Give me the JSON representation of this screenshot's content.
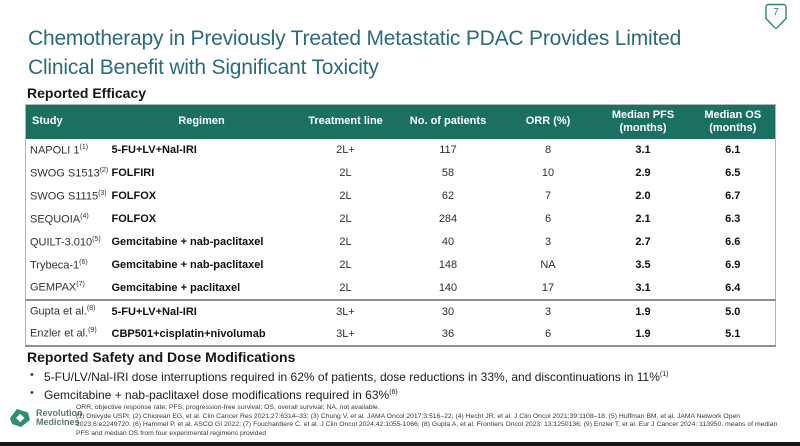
{
  "page": {
    "number": "7"
  },
  "colors": {
    "accent_mint": "#7deccf",
    "accent_green": "#2bc873",
    "table_header_bg": "#1b7061",
    "title_teal": "#2a6b7c",
    "badge_outline": "#2e8273",
    "logo_green": "#2e8f72"
  },
  "title_line1": "Chemotherapy in Previously Treated Metastatic PDAC Provides Limited",
  "title_line2": "Clinical Benefit with Significant Toxicity",
  "sections": {
    "efficacy_heading": "Reported Efficacy",
    "safety_heading": "Reported Safety and Dose Modifications"
  },
  "table": {
    "headers": [
      "Study",
      "Regimen",
      "Treatment line",
      "No. of patients",
      "ORR (%)",
      "Median PFS (months)",
      "Median OS (months)"
    ],
    "rows": [
      {
        "study": "NAPOLI 1",
        "ref": "(1)",
        "regimen": "5-FU+LV+Nal-IRI",
        "line": "2L+",
        "patients": "117",
        "orr": "8",
        "pfs": "3.1",
        "os": "6.1",
        "group": "2L"
      },
      {
        "study": "SWOG S1513",
        "ref": "(2)",
        "regimen": "FOLFIRI",
        "line": "2L",
        "patients": "58",
        "orr": "10",
        "pfs": "2.9",
        "os": "6.5",
        "group": "2L"
      },
      {
        "study": "SWOG S1115",
        "ref": "(3)",
        "regimen": "FOLFOX",
        "line": "2L",
        "patients": "62",
        "orr": "7",
        "pfs": "2.0",
        "os": "6.7",
        "group": "2L"
      },
      {
        "study": "SEQUOIA",
        "ref": "(4)",
        "regimen": "FOLFOX",
        "line": "2L",
        "patients": "284",
        "orr": "6",
        "pfs": "2.1",
        "os": "6.3",
        "group": "2L"
      },
      {
        "study": "QUILT-3.010",
        "ref": "(5)",
        "regimen": "Gemcitabine + nab-paclitaxel",
        "line": "2L",
        "patients": "40",
        "orr": "3",
        "pfs": "2.7",
        "os": "6.6",
        "group": "2L"
      },
      {
        "study": "Trybeca-1",
        "ref": "(6)",
        "regimen": "Gemcitabine + nab-paclitaxel",
        "line": "2L",
        "patients": "148",
        "orr": "NA",
        "pfs": "3.5",
        "os": "6.9",
        "group": "2L"
      },
      {
        "study": "GEMPAX",
        "ref": "(7)",
        "regimen": "Gemcitabine + paclitaxel",
        "line": "2L",
        "patients": "140",
        "orr": "17",
        "pfs": "3.1",
        "os": "6.4",
        "group": "2L"
      },
      {
        "study": "Gupta et al.",
        "ref": "(8)",
        "regimen": "5-FU+LV+Nal-IRI",
        "line": "3L+",
        "patients": "30",
        "orr": "3",
        "pfs": "1.9",
        "os": "5.0",
        "group": "3L+"
      },
      {
        "study": "Enzler et al.",
        "ref": "(9)",
        "regimen": "CBP501+cisplatin+nivolumab",
        "line": "3L+",
        "patients": "36",
        "orr": "6",
        "pfs": "1.9",
        "os": "5.1",
        "group": "3L+"
      }
    ]
  },
  "bullets": [
    {
      "text": "5-FU/LV/Nal-IRI dose interruptions required in 62% of patients, dose reductions in 33%, and discontinuations in 11%",
      "ref": "(1)"
    },
    {
      "text": "Gemcitabine + nab-paclitaxel dose modifications required in 63%",
      "ref": "(6)"
    }
  ],
  "footer": {
    "logo_line1": "Revolution",
    "logo_line2": "Medicines",
    "abbreviations": "ORR, objective response rate; PFS, progression-free survival; OS, overall survival; NA, not available.",
    "references": "(1) Onivyde USPI; (2) Chiorean EG, et al. Clin Cancer Res 2021;27:6314–33; (3) Chung V, et al. JAMA Oncol 2017;3:516–22; (4) Hecht JR, et al. J Clin Oncol 2021;39:1108–18; (5) Huffman BM, et al. JAMA Network Open 2023;6:e2249720. (6) Hammel P, et al. ASCO GI 2022; (7) Fouchardiere C, et al. J Clin Oncol 2024;42:1055-1066; (8) Gupta A, et al. Frontiers Oncol 2023: 13:1250136; (9) Enzler T, et al. Eur J Cancer 2024: 113950, means of median PFS and median OS from four experimental regimens provided"
  }
}
